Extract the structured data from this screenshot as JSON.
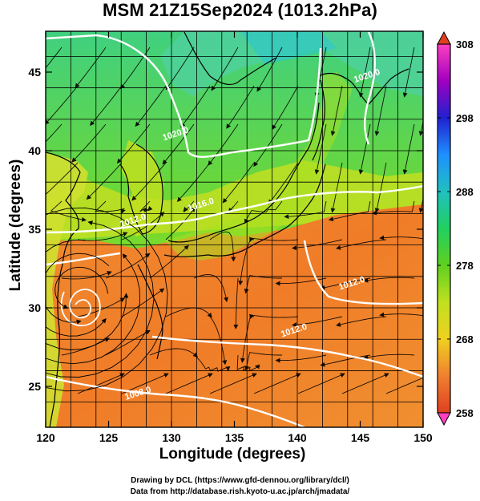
{
  "title": "MSM 21Z15Sep2024 (1013.2hPa)",
  "xlabel": "Longitude (degrees)",
  "ylabel": "Latitude  (degrees)",
  "credits": {
    "line1": "Drawing by DCL (https://www.gfd-dennou.org/library/dcl/)",
    "line2": "Data from http://database.rish.kyoto-u.ac.jp/arch/jmadata/"
  },
  "map": {
    "lon_range": [
      120,
      150
    ],
    "lat_range": [
      22.4,
      47.6
    ],
    "x_ticks": [
      "120",
      "125",
      "130",
      "135",
      "140",
      "145",
      "150"
    ],
    "y_ticks": [
      "25",
      "30",
      "35",
      "40",
      "45"
    ],
    "grid": true,
    "field": "temperature",
    "cyclone_center": {
      "lon": 122.4,
      "lat": 30.9
    }
  },
  "colorbar": {
    "min": 258,
    "max": 308,
    "tick_labels": [
      "308",
      "298",
      "288",
      "278",
      "268",
      "258"
    ],
    "stops": [
      "#ff40c0",
      "#a000c0",
      "#2020d0",
      "#1e90ff",
      "#20c0c0",
      "#20d060",
      "#60d020",
      "#c0e020",
      "#f0d020",
      "#f08030",
      "#e04020"
    ]
  },
  "contours": [
    {
      "label": "1020.0",
      "lon": 130.4,
      "lat": 40.9
    },
    {
      "label": "1020.0",
      "lon": 145.6,
      "lat": 44.6
    },
    {
      "label": "1016.0",
      "lon": 132.4,
      "lat": 36.4
    },
    {
      "label": "1012.0",
      "lon": 127.0,
      "lat": 35.4
    },
    {
      "label": "1012.0",
      "lon": 144.4,
      "lat": 31.4
    },
    {
      "label": "1012.0",
      "lon": 139.8,
      "lat": 28.4
    },
    {
      "label": "1008.0",
      "lon": 127.4,
      "lat": 24.4
    }
  ]
}
